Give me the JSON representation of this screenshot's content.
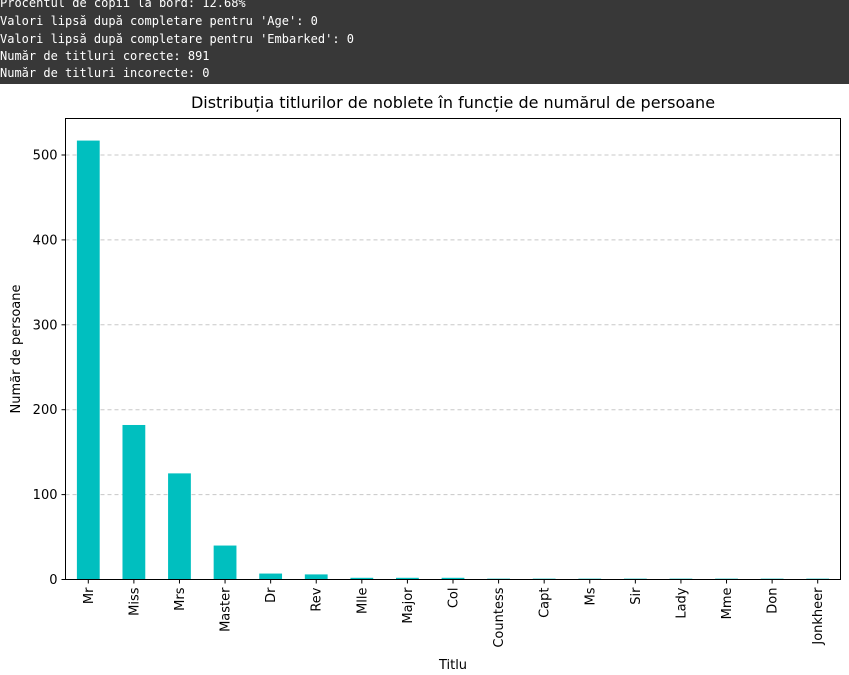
{
  "console": {
    "lines": [
      "Procentul de copii la bord: 12.68%",
      "Valori lipsă după completare pentru 'Age': 0",
      "Valori lipsă după completare pentru 'Embarked': 0",
      "Număr de titluri corecte: 891",
      "Număr de titluri incorecte: 0"
    ]
  },
  "chart_data": {
    "type": "bar",
    "title": "Distribuția titlurilor de noblete în funcție de numărul de persoane",
    "xlabel": "Titlu",
    "ylabel": "Număr de persoane",
    "categories": [
      "Mr",
      "Miss",
      "Mrs",
      "Master",
      "Dr",
      "Rev",
      "Mlle",
      "Major",
      "Col",
      "Countess",
      "Capt",
      "Ms",
      "Sir",
      "Lady",
      "Mme",
      "Don",
      "Jonkheer"
    ],
    "values": [
      517,
      182,
      125,
      40,
      7,
      6,
      2,
      2,
      2,
      1,
      1,
      1,
      1,
      1,
      1,
      1,
      1
    ],
    "ylim": [
      0,
      543
    ],
    "yticks": [
      0,
      100,
      200,
      300,
      400,
      500
    ],
    "grid": "y-dashed",
    "bar_color": "#00bfbf"
  }
}
